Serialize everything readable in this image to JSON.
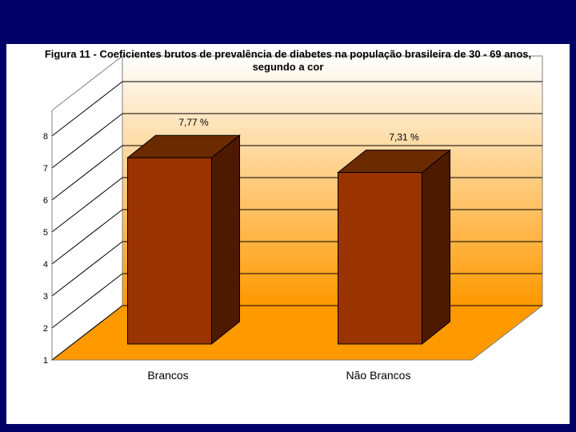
{
  "chart_data": {
    "type": "bar",
    "title": "Figura 11 - Coeficientes brutos de prevalência de diabetes na população brasileira de 30 - 69 anos,\nsegundo a cor",
    "categories": [
      "Brancos",
      "Não Brancos"
    ],
    "values": [
      7.77,
      7.31
    ],
    "data_labels": [
      "7,77 %",
      "7,31 %"
    ],
    "y_ticks": [
      "1",
      "2",
      "3",
      "4",
      "5",
      "6",
      "7",
      "8"
    ],
    "ylim": [
      1,
      8.8
    ],
    "grid": true,
    "style": "3d",
    "colors": {
      "slide_background": "#000066",
      "chart_area": "#FFFFFF",
      "wall_top": "#FFFFFF",
      "wall_bottom": "#FF9900",
      "bar_front": "#993300",
      "bar_side": "#4D1A00",
      "bar_top": "#6B2A00"
    }
  }
}
